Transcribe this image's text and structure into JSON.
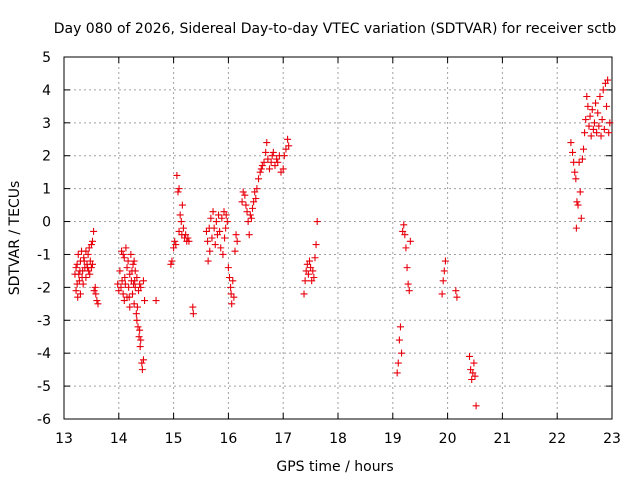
{
  "chart_data": {
    "type": "scatter",
    "title": "Day 080 of 2026, Sidereal Day-to-day VTEC variation (SDTVAR) for receiver sctb",
    "xlabel": "GPS time / hours",
    "ylabel": "SDTVAR / TECUs",
    "xlim": [
      13,
      23
    ],
    "ylim": [
      -6,
      5
    ],
    "xticks": [
      13,
      14,
      15,
      16,
      17,
      18,
      19,
      20,
      21,
      22,
      23
    ],
    "yticks": [
      -6,
      -5,
      -4,
      -3,
      -2,
      -1,
      0,
      1,
      2,
      3,
      4,
      5
    ],
    "grid": true,
    "marker": "+",
    "color": "#e8000b",
    "series": [
      {
        "name": "sdtvar",
        "points": [
          [
            13.2,
            -1.6
          ],
          [
            13.22,
            -2.1
          ],
          [
            13.24,
            -1.3
          ],
          [
            13.25,
            -2.3
          ],
          [
            13.26,
            -1.0
          ],
          [
            13.28,
            -1.8
          ],
          [
            13.3,
            -1.2
          ],
          [
            13.3,
            -2.2
          ],
          [
            13.32,
            -0.9
          ],
          [
            13.34,
            -1.5
          ],
          [
            13.35,
            -1.9
          ],
          [
            13.36,
            -1.1
          ],
          [
            13.38,
            -1.4
          ],
          [
            13.4,
            -0.9
          ],
          [
            13.4,
            -1.7
          ],
          [
            13.42,
            -1.3
          ],
          [
            13.44,
            -1.0
          ],
          [
            13.45,
            -1.5
          ],
          [
            13.46,
            -0.8
          ],
          [
            13.48,
            -1.2
          ],
          [
            13.5,
            -0.7
          ],
          [
            13.5,
            -1.4
          ],
          [
            13.52,
            -0.6
          ],
          [
            13.52,
            -1.3
          ],
          [
            13.54,
            -0.3
          ],
          [
            13.55,
            -2.1
          ],
          [
            13.57,
            -2.0
          ],
          [
            13.58,
            -2.2
          ],
          [
            13.6,
            -2.4
          ],
          [
            13.62,
            -2.5
          ],
          [
            13.22,
            -1.4
          ],
          [
            13.27,
            -1.6
          ],
          [
            13.33,
            -1.7
          ],
          [
            13.37,
            -1.2
          ],
          [
            13.43,
            -1.4
          ],
          [
            13.47,
            -1.6
          ],
          [
            13.24,
            -1.9
          ],
          [
            13.29,
            -1.5
          ],
          [
            14.02,
            -1.5
          ],
          [
            14.04,
            -2.0
          ],
          [
            14.05,
            -0.9
          ],
          [
            14.06,
            -1.8
          ],
          [
            14.08,
            -2.2
          ],
          [
            14.08,
            -1.0
          ],
          [
            14.1,
            -2.4
          ],
          [
            14.1,
            -1.1
          ],
          [
            14.12,
            -1.9
          ],
          [
            14.13,
            -0.8
          ],
          [
            14.15,
            -2.3
          ],
          [
            14.15,
            -1.4
          ],
          [
            14.17,
            -1.2
          ],
          [
            14.18,
            -2.0
          ],
          [
            14.2,
            -1.6
          ],
          [
            14.2,
            -2.6
          ],
          [
            14.22,
            -1.0
          ],
          [
            14.23,
            -1.8
          ],
          [
            14.25,
            -2.2
          ],
          [
            14.26,
            -1.3
          ],
          [
            14.27,
            -1.9
          ],
          [
            14.28,
            -2.5
          ],
          [
            14.28,
            -1.2
          ],
          [
            14.3,
            -2.0
          ],
          [
            14.3,
            -1.5
          ],
          [
            14.32,
            -2.8
          ],
          [
            14.33,
            -1.7
          ],
          [
            14.33,
            -3.0
          ],
          [
            14.35,
            -3.2
          ],
          [
            14.36,
            -2.1
          ],
          [
            14.37,
            -3.5
          ],
          [
            14.38,
            -1.9
          ],
          [
            14.38,
            -3.3
          ],
          [
            14.4,
            -3.6
          ],
          [
            14.4,
            -2.0
          ],
          [
            14.42,
            -4.3
          ],
          [
            14.43,
            -4.5
          ],
          [
            14.45,
            -4.2
          ],
          [
            14.45,
            -1.8
          ],
          [
            14.47,
            -2.4
          ],
          [
            14.68,
            -2.4
          ],
          [
            13.98,
            -1.9
          ],
          [
            14.0,
            -2.1
          ],
          [
            14.11,
            -1.7
          ],
          [
            14.19,
            -2.3
          ],
          [
            14.24,
            -1.5
          ],
          [
            14.29,
            -1.8
          ],
          [
            14.34,
            -2.6
          ],
          [
            14.39,
            -3.8
          ],
          [
            14.95,
            -1.3
          ],
          [
            14.97,
            -1.2
          ],
          [
            15.0,
            -0.8
          ],
          [
            15.02,
            -0.6
          ],
          [
            15.04,
            -0.7
          ],
          [
            15.06,
            1.4
          ],
          [
            15.08,
            0.9
          ],
          [
            15.1,
            1.0
          ],
          [
            15.1,
            -0.3
          ],
          [
            15.12,
            0.2
          ],
          [
            15.14,
            0.0
          ],
          [
            15.15,
            -0.4
          ],
          [
            15.16,
            0.5
          ],
          [
            15.18,
            -0.2
          ],
          [
            15.2,
            -0.5
          ],
          [
            15.22,
            -0.4
          ],
          [
            15.24,
            -0.6
          ],
          [
            15.26,
            -0.5
          ],
          [
            15.28,
            -0.6
          ],
          [
            15.35,
            -2.6
          ],
          [
            15.36,
            -2.8
          ],
          [
            15.6,
            -0.3
          ],
          [
            15.62,
            -0.6
          ],
          [
            15.63,
            -1.2
          ],
          [
            15.65,
            -0.2
          ],
          [
            15.66,
            -0.9
          ],
          [
            15.68,
            0.1
          ],
          [
            15.7,
            -0.5
          ],
          [
            15.72,
            0.3
          ],
          [
            15.74,
            -0.2
          ],
          [
            15.76,
            -0.7
          ],
          [
            15.78,
            0.0
          ],
          [
            15.8,
            -0.4
          ],
          [
            15.82,
            0.2
          ],
          [
            15.84,
            -0.3
          ],
          [
            15.86,
            -0.8
          ],
          [
            15.88,
            0.1
          ],
          [
            15.9,
            -1.0
          ],
          [
            15.92,
            0.3
          ],
          [
            15.93,
            -0.5
          ],
          [
            15.95,
            -0.2
          ],
          [
            15.96,
            0.2
          ],
          [
            15.98,
            0.0
          ],
          [
            16.0,
            -1.4
          ],
          [
            16.02,
            -1.7
          ],
          [
            16.04,
            -2.0
          ],
          [
            16.05,
            -2.2
          ],
          [
            16.06,
            -2.5
          ],
          [
            16.08,
            -1.8
          ],
          [
            16.1,
            -2.3
          ],
          [
            16.12,
            -0.9
          ],
          [
            16.14,
            -0.4
          ],
          [
            16.16,
            -0.6
          ],
          [
            16.25,
            0.6
          ],
          [
            16.27,
            0.9
          ],
          [
            16.3,
            0.8
          ],
          [
            16.32,
            0.5
          ],
          [
            16.34,
            0.3
          ],
          [
            16.36,
            0.0
          ],
          [
            16.38,
            -0.4
          ],
          [
            16.4,
            0.2
          ],
          [
            16.42,
            0.1
          ],
          [
            16.44,
            0.4
          ],
          [
            16.46,
            0.6
          ],
          [
            16.48,
            0.9
          ],
          [
            16.5,
            0.7
          ],
          [
            16.52,
            1.0
          ],
          [
            16.55,
            1.3
          ],
          [
            16.58,
            1.5
          ],
          [
            16.6,
            1.6
          ],
          [
            16.62,
            1.7
          ],
          [
            16.65,
            1.8
          ],
          [
            16.68,
            2.1
          ],
          [
            16.7,
            2.4
          ],
          [
            16.72,
            1.9
          ],
          [
            16.75,
            1.6
          ],
          [
            16.78,
            1.8
          ],
          [
            16.8,
            2.0
          ],
          [
            16.82,
            2.1
          ],
          [
            16.85,
            1.7
          ],
          [
            16.88,
            1.9
          ],
          [
            16.9,
            1.8
          ],
          [
            16.93,
            2.0
          ],
          [
            16.96,
            1.5
          ],
          [
            17.0,
            1.6
          ],
          [
            17.02,
            2.0
          ],
          [
            17.05,
            2.2
          ],
          [
            17.08,
            2.5
          ],
          [
            17.1,
            2.3
          ],
          [
            17.38,
            -2.2
          ],
          [
            17.4,
            -1.8
          ],
          [
            17.42,
            -1.5
          ],
          [
            17.44,
            -1.3
          ],
          [
            17.46,
            -1.6
          ],
          [
            17.48,
            -1.2
          ],
          [
            17.5,
            -1.4
          ],
          [
            17.52,
            -1.8
          ],
          [
            17.54,
            -1.5
          ],
          [
            17.56,
            -1.7
          ],
          [
            17.58,
            -1.1
          ],
          [
            17.6,
            -0.7
          ],
          [
            17.62,
            0.0
          ],
          [
            19.08,
            -4.6
          ],
          [
            19.1,
            -4.3
          ],
          [
            19.12,
            -3.6
          ],
          [
            19.14,
            -3.2
          ],
          [
            19.16,
            -4.0
          ],
          [
            19.18,
            -0.3
          ],
          [
            19.2,
            -0.1
          ],
          [
            19.22,
            -0.4
          ],
          [
            19.24,
            -0.8
          ],
          [
            19.26,
            -1.4
          ],
          [
            19.28,
            -1.9
          ],
          [
            19.3,
            -2.1
          ],
          [
            19.32,
            -0.6
          ],
          [
            19.9,
            -2.2
          ],
          [
            19.92,
            -1.8
          ],
          [
            19.94,
            -1.5
          ],
          [
            19.96,
            -1.2
          ],
          [
            20.15,
            -2.1
          ],
          [
            20.17,
            -2.3
          ],
          [
            20.4,
            -4.1
          ],
          [
            20.42,
            -4.5
          ],
          [
            20.44,
            -4.8
          ],
          [
            20.46,
            -4.6
          ],
          [
            20.48,
            -4.3
          ],
          [
            20.5,
            -4.7
          ],
          [
            20.52,
            -5.6
          ],
          [
            22.25,
            2.4
          ],
          [
            22.28,
            2.1
          ],
          [
            22.3,
            1.8
          ],
          [
            22.32,
            1.5
          ],
          [
            22.34,
            1.3
          ],
          [
            22.35,
            -0.2
          ],
          [
            22.36,
            0.6
          ],
          [
            22.38,
            0.5
          ],
          [
            22.4,
            1.8
          ],
          [
            22.42,
            0.9
          ],
          [
            22.44,
            0.1
          ],
          [
            22.46,
            1.9
          ],
          [
            22.48,
            2.2
          ],
          [
            22.5,
            2.7
          ],
          [
            22.52,
            3.1
          ],
          [
            22.54,
            3.8
          ],
          [
            22.56,
            3.5
          ],
          [
            22.58,
            2.9
          ],
          [
            22.6,
            3.2
          ],
          [
            22.62,
            2.6
          ],
          [
            22.64,
            3.4
          ],
          [
            22.66,
            2.8
          ],
          [
            22.68,
            3.0
          ],
          [
            22.7,
            3.6
          ],
          [
            22.72,
            2.7
          ],
          [
            22.74,
            3.3
          ],
          [
            22.76,
            2.9
          ],
          [
            22.78,
            3.8
          ],
          [
            22.8,
            2.6
          ],
          [
            22.82,
            3.1
          ],
          [
            22.84,
            4.0
          ],
          [
            22.86,
            2.8
          ],
          [
            22.88,
            4.2
          ],
          [
            22.9,
            3.5
          ],
          [
            22.92,
            4.3
          ],
          [
            22.94,
            2.7
          ],
          [
            22.96,
            3.0
          ]
        ]
      }
    ]
  }
}
